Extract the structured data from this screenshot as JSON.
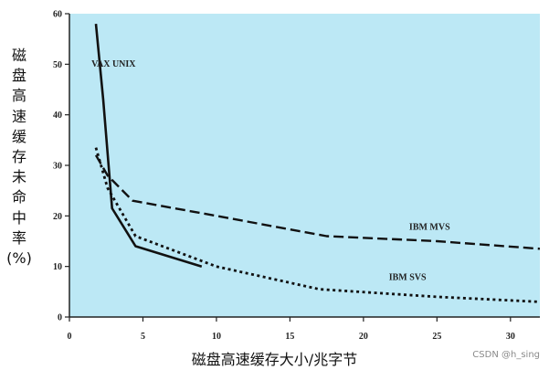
{
  "chart_data": {
    "type": "line",
    "xlabel": "磁盘高速缓存大小/兆字节",
    "ylabel": "磁盘高速缓存未命中率(%)",
    "xlim": [
      0,
      32
    ],
    "ylim": [
      0,
      60
    ],
    "x_ticks": [
      0,
      5,
      10,
      15,
      20,
      25,
      30
    ],
    "y_ticks": [
      0,
      10,
      20,
      30,
      40,
      50,
      60
    ],
    "background_color": "#bce8f5",
    "grid": false,
    "series": [
      {
        "name": "VAX UNIX",
        "style": "solid",
        "points": [
          [
            1.8,
            58
          ],
          [
            2.3,
            43
          ],
          [
            2.9,
            21.5
          ],
          [
            4.5,
            14
          ],
          [
            9,
            10
          ]
        ]
      },
      {
        "name": "IBM MVS",
        "style": "dashed",
        "points": [
          [
            1.8,
            32
          ],
          [
            2.6,
            28
          ],
          [
            4.3,
            23
          ],
          [
            10,
            20
          ],
          [
            17.5,
            16
          ],
          [
            25,
            15
          ],
          [
            32,
            13.5
          ]
        ]
      },
      {
        "name": "IBM SVS",
        "style": "dotted",
        "points": [
          [
            1.8,
            33.5
          ],
          [
            2.6,
            25.5
          ],
          [
            4.5,
            16
          ],
          [
            10,
            10
          ],
          [
            17,
            5.5
          ],
          [
            25,
            4
          ],
          [
            32,
            3
          ]
        ]
      }
    ]
  },
  "labels": {
    "xlabel": "磁盘高速缓存大小/兆字节",
    "ylabel_chars": [
      "磁",
      "盘",
      "高",
      "速",
      "缓",
      "存",
      "未",
      "命",
      "中",
      "率",
      "(%)"
    ],
    "watermark": "CSDN @h_sing"
  }
}
